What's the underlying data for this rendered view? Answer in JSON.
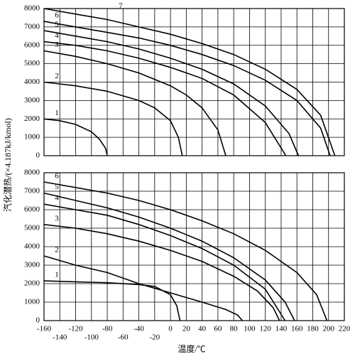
{
  "chart_data": [
    {
      "type": "line",
      "ylim": [
        0,
        8000
      ],
      "yticks": [
        0,
        1000,
        2000,
        3000,
        4000,
        5000,
        6000,
        7000,
        8000
      ],
      "xlim": [
        -160,
        220
      ],
      "grid": true,
      "color": "#000000",
      "ylabel": "汽化潜热/(×4.187kJ/kmol)",
      "series": [
        {
          "name": "1",
          "x": [
            -160,
            -140,
            -120,
            -100,
            -90,
            -82,
            -80
          ],
          "values": [
            2000,
            1900,
            1700,
            1300,
            900,
            400,
            0
          ]
        },
        {
          "name": "2",
          "x": [
            -160,
            -120,
            -80,
            -40,
            -20,
            0,
            10,
            15
          ],
          "values": [
            4000,
            3800,
            3500,
            3000,
            2600,
            1900,
            1000,
            0
          ]
        },
        {
          "name": "3",
          "x": [
            -160,
            -120,
            -80,
            -40,
            0,
            20,
            40,
            60,
            70
          ],
          "values": [
            5700,
            5400,
            5000,
            4500,
            3800,
            3300,
            2600,
            1400,
            0
          ]
        },
        {
          "name": "4",
          "x": [
            -160,
            -120,
            -80,
            -40,
            0,
            40,
            80,
            120,
            146
          ],
          "values": [
            6200,
            6000,
            5700,
            5300,
            4800,
            4200,
            3300,
            1800,
            0
          ]
        },
        {
          "name": "5",
          "x": [
            -160,
            -120,
            -80,
            -40,
            0,
            40,
            80,
            120,
            150,
            162
          ],
          "values": [
            6800,
            6500,
            6200,
            5800,
            5300,
            4700,
            3900,
            2700,
            1200,
            0
          ]
        },
        {
          "name": "6",
          "x": [
            -160,
            -120,
            -80,
            -40,
            0,
            40,
            80,
            120,
            160,
            190,
            202
          ],
          "values": [
            7300,
            7000,
            6700,
            6400,
            6000,
            5500,
            4900,
            4100,
            3000,
            1500,
            0
          ]
        },
        {
          "name": "7",
          "x": [
            -160,
            -120,
            -80,
            -40,
            0,
            40,
            80,
            120,
            160,
            190,
            208
          ],
          "values": [
            8000,
            7700,
            7400,
            7000,
            6600,
            6100,
            5500,
            4700,
            3600,
            2200,
            0
          ]
        }
      ]
    },
    {
      "type": "line",
      "ylim": [
        0,
        8000
      ],
      "yticks": [
        0,
        1000,
        2000,
        3000,
        4000,
        5000,
        6000,
        7000,
        8000
      ],
      "xlim": [
        -160,
        220
      ],
      "grid": true,
      "color": "#000000",
      "xticks": [
        -160,
        -140,
        -120,
        -100,
        -80,
        -60,
        -40,
        -20,
        0,
        20,
        40,
        60,
        80,
        100,
        120,
        140,
        160,
        180,
        200,
        220
      ],
      "xlabel": "温度/℃",
      "series": [
        {
          "name": "1",
          "x": [
            -160,
            -120,
            -80,
            -40,
            -20,
            0,
            8,
            12
          ],
          "values": [
            2150,
            2100,
            2050,
            1950,
            1850,
            1400,
            800,
            0
          ]
        },
        {
          "name": "2",
          "x": [
            -160,
            -120,
            -80,
            -40,
            0,
            40,
            70,
            85,
            91
          ],
          "values": [
            3500,
            3000,
            2600,
            2000,
            1500,
            1000,
            600,
            300,
            0
          ]
        },
        {
          "name": "3",
          "x": [
            -160,
            -120,
            -80,
            -40,
            0,
            40,
            80,
            110,
            130,
            138
          ],
          "values": [
            5200,
            5000,
            4700,
            4300,
            3800,
            3200,
            2400,
            1600,
            700,
            0
          ]
        },
        {
          "name": "4",
          "x": [
            -160,
            -120,
            -80,
            -40,
            0,
            40,
            80,
            120,
            145
          ],
          "values": [
            6300,
            6000,
            5700,
            5200,
            4600,
            3900,
            3000,
            1700,
            0
          ]
        },
        {
          "name": "5",
          "x": [
            -160,
            -120,
            -80,
            -40,
            0,
            40,
            80,
            120,
            145,
            157
          ],
          "values": [
            6900,
            6500,
            6100,
            5600,
            5000,
            4300,
            3400,
            2200,
            1000,
            0
          ]
        },
        {
          "name": "6",
          "x": [
            -160,
            -120,
            -80,
            -40,
            0,
            40,
            80,
            120,
            160,
            185,
            198
          ],
          "values": [
            7500,
            7200,
            6900,
            6500,
            6000,
            5400,
            4700,
            3800,
            2600,
            1400,
            0
          ]
        }
      ]
    }
  ]
}
